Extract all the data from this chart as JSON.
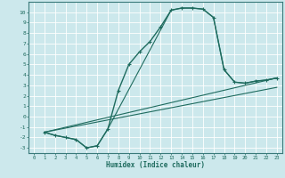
{
  "title": "",
  "xlabel": "Humidex (Indice chaleur)",
  "bg_color": "#cce8ec",
  "line_color": "#1e6b5e",
  "grid_color": "#ffffff",
  "xlim": [
    -0.5,
    23.5
  ],
  "ylim": [
    -3.5,
    11.0
  ],
  "xticks": [
    0,
    1,
    2,
    3,
    4,
    5,
    6,
    7,
    8,
    9,
    10,
    11,
    12,
    13,
    14,
    15,
    16,
    17,
    18,
    19,
    20,
    21,
    22,
    23
  ],
  "yticks": [
    -3,
    -2,
    -1,
    0,
    1,
    2,
    3,
    4,
    5,
    6,
    7,
    8,
    9,
    10
  ],
  "curve1_x": [
    1,
    2,
    3,
    4,
    5,
    6,
    7,
    8,
    9,
    10,
    11,
    12,
    13,
    14,
    15,
    16,
    17,
    18,
    19,
    20,
    21,
    22,
    23
  ],
  "curve1_y": [
    -1.5,
    -1.8,
    -2.0,
    -2.2,
    -3.0,
    -2.8,
    -1.2,
    2.5,
    5.0,
    6.2,
    7.2,
    8.6,
    10.2,
    10.4,
    10.4,
    10.3,
    9.5,
    4.5,
    3.3,
    3.2,
    3.4,
    3.5,
    3.7
  ],
  "curve2_x": [
    1,
    2,
    3,
    4,
    5,
    6,
    7,
    13,
    14,
    15,
    16,
    17,
    18,
    19,
    20,
    21,
    22,
    23
  ],
  "curve2_y": [
    -1.5,
    -1.8,
    -2.0,
    -2.2,
    -3.0,
    -2.8,
    -1.2,
    10.2,
    10.4,
    10.4,
    10.3,
    9.5,
    4.5,
    3.3,
    3.2,
    3.4,
    3.5,
    3.7
  ],
  "line1_x": [
    1,
    23
  ],
  "line1_y": [
    -1.5,
    3.7
  ],
  "line2_x": [
    1,
    23
  ],
  "line2_y": [
    -1.5,
    2.8
  ]
}
